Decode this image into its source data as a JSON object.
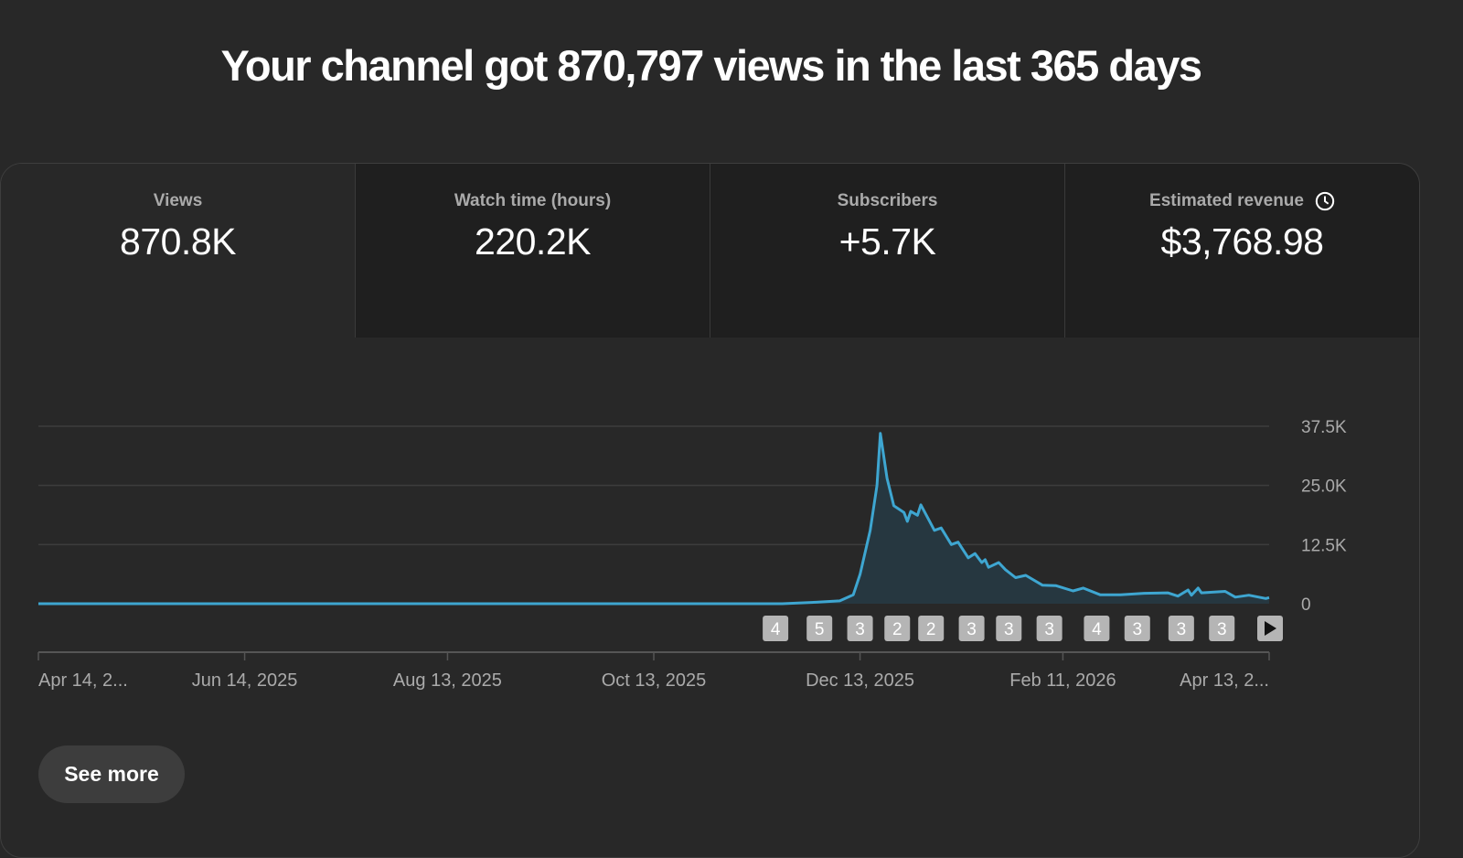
{
  "header": {
    "title": "Your channel got 870,797 views in the last 365 days"
  },
  "metrics": [
    {
      "label": "Views",
      "value": "870.8K",
      "selected": true
    },
    {
      "label": "Watch time (hours)",
      "value": "220.2K",
      "selected": false
    },
    {
      "label": "Subscribers",
      "value": "+5.7K",
      "selected": false
    },
    {
      "label": "Estimated revenue",
      "value": "$3,768.98",
      "selected": false,
      "icon": "clock-icon"
    }
  ],
  "colors": {
    "line": "#3ea6d1",
    "area": "#263740",
    "background": "#282828",
    "grid": "#3d3d3d"
  },
  "chart_data": {
    "type": "area",
    "ylim": [
      0,
      37500
    ],
    "y_ticks": [
      {
        "value": 0,
        "label": "0"
      },
      {
        "value": 12500,
        "label": "12.5K"
      },
      {
        "value": 25000,
        "label": "25.0K"
      },
      {
        "value": 37500,
        "label": "37.5K"
      }
    ],
    "x_range": [
      "2025-04-14",
      "2026-04-13"
    ],
    "x_ticks": [
      {
        "date": "2025-04-14",
        "label": "Apr 14, 2..."
      },
      {
        "date": "2025-06-14",
        "label": "Jun 14, 2025"
      },
      {
        "date": "2025-08-13",
        "label": "Aug 13, 2025"
      },
      {
        "date": "2025-10-13",
        "label": "Oct 13, 2025"
      },
      {
        "date": "2025-12-13",
        "label": "Dec 13, 2025"
      },
      {
        "date": "2026-02-11",
        "label": "Feb 11, 2026"
      },
      {
        "date": "2026-04-13",
        "label": "Apr 13, 2..."
      }
    ],
    "grid": true,
    "points": [
      [
        "2025-04-14",
        0
      ],
      [
        "2025-11-20",
        0
      ],
      [
        "2025-11-30",
        300
      ],
      [
        "2025-12-07",
        600
      ],
      [
        "2025-12-11",
        1900
      ],
      [
        "2025-12-13",
        6200
      ],
      [
        "2025-12-16",
        15500
      ],
      [
        "2025-12-18",
        25000
      ],
      [
        "2025-12-19",
        36000
      ],
      [
        "2025-12-21",
        26500
      ],
      [
        "2025-12-23",
        20700
      ],
      [
        "2025-12-26",
        19300
      ],
      [
        "2025-12-27",
        17400
      ],
      [
        "2025-12-28",
        19500
      ],
      [
        "2025-12-30",
        18700
      ],
      [
        "2025-12-31",
        20900
      ],
      [
        "2026-01-04",
        15500
      ],
      [
        "2026-01-06",
        16000
      ],
      [
        "2026-01-09",
        12500
      ],
      [
        "2026-01-11",
        13000
      ],
      [
        "2026-01-14",
        9700
      ],
      [
        "2026-01-16",
        10600
      ],
      [
        "2026-01-18",
        8700
      ],
      [
        "2026-01-19",
        9300
      ],
      [
        "2026-01-20",
        7700
      ],
      [
        "2026-01-23",
        8700
      ],
      [
        "2026-01-25",
        7200
      ],
      [
        "2026-01-28",
        5500
      ],
      [
        "2026-01-31",
        6000
      ],
      [
        "2026-02-05",
        3900
      ],
      [
        "2026-02-09",
        3800
      ],
      [
        "2026-02-14",
        2700
      ],
      [
        "2026-02-17",
        3300
      ],
      [
        "2026-02-22",
        1900
      ],
      [
        "2026-02-28",
        1900
      ],
      [
        "2026-03-07",
        2200
      ],
      [
        "2026-03-14",
        2300
      ],
      [
        "2026-03-17",
        1600
      ],
      [
        "2026-03-20",
        2900
      ],
      [
        "2026-03-21",
        1800
      ],
      [
        "2026-03-23",
        3300
      ],
      [
        "2026-03-24",
        2300
      ],
      [
        "2026-03-31",
        2600
      ],
      [
        "2026-04-03",
        1400
      ],
      [
        "2026-04-07",
        1800
      ],
      [
        "2026-04-12",
        1100
      ],
      [
        "2026-04-13",
        1300
      ]
    ],
    "annotations": [
      {
        "date": "2025-11-18",
        "label": "4"
      },
      {
        "date": "2025-12-01",
        "label": "5"
      },
      {
        "date": "2025-12-13",
        "label": "3"
      },
      {
        "date": "2025-12-24",
        "label": "2"
      },
      {
        "date": "2026-01-03",
        "label": "2"
      },
      {
        "date": "2026-01-15",
        "label": "3"
      },
      {
        "date": "2026-01-26",
        "label": "3"
      },
      {
        "date": "2026-02-07",
        "label": "3"
      },
      {
        "date": "2026-02-21",
        "label": "4"
      },
      {
        "date": "2026-03-05",
        "label": "3"
      },
      {
        "date": "2026-03-18",
        "label": "3"
      },
      {
        "date": "2026-03-30",
        "label": "3"
      }
    ],
    "annotation_more_icon": "play-icon"
  },
  "actions": {
    "see_more": "See more"
  }
}
